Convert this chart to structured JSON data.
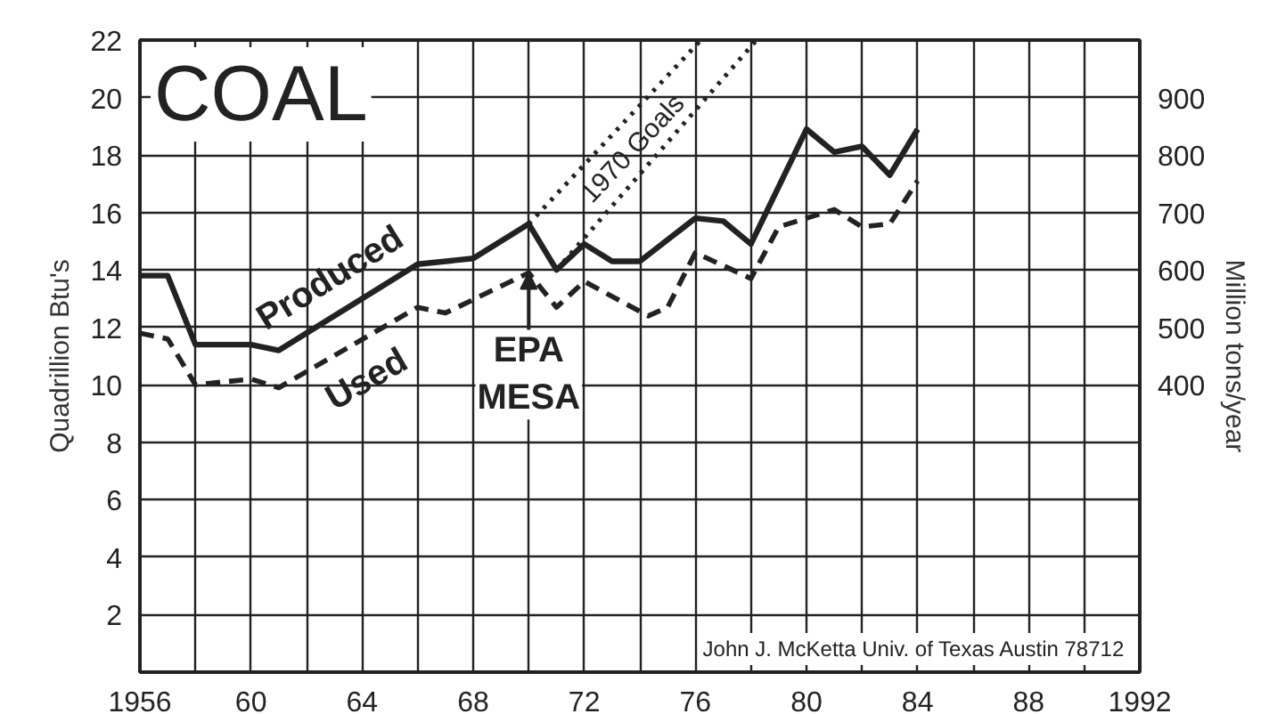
{
  "chart_data": {
    "type": "line",
    "title": "COAL",
    "ylabel": "Quadrillion Btu's",
    "y2label": "Million tons/year",
    "xlim": [
      1956,
      1992
    ],
    "ylim": [
      0,
      22
    ],
    "y2lim": [
      -100,
      1000
    ],
    "xticks": [
      1956,
      {
        "value": 1958,
        "label": null
      },
      {
        "value": 1960,
        "label": "60"
      },
      {
        "value": 1962,
        "label": null
      },
      {
        "value": 1964,
        "label": "64"
      },
      {
        "value": 1966,
        "label": null
      },
      {
        "value": 1968,
        "label": "68"
      },
      {
        "value": 1970,
        "label": null
      },
      {
        "value": 1972,
        "label": "72"
      },
      {
        "value": 1974,
        "label": null
      },
      {
        "value": 1976,
        "label": "76"
      },
      {
        "value": 1978,
        "label": null
      },
      {
        "value": 1980,
        "label": "80"
      },
      {
        "value": 1982,
        "label": null
      },
      {
        "value": 1984,
        "label": "84"
      },
      {
        "value": 1986,
        "label": null
      },
      {
        "value": 1988,
        "label": "88"
      },
      {
        "value": 1990,
        "label": null
      },
      1992
    ],
    "yticks": [
      2,
      4,
      6,
      8,
      10,
      12,
      14,
      16,
      18,
      20,
      22
    ],
    "y2ticks": [
      400,
      500,
      600,
      700,
      800,
      900
    ],
    "grid": true,
    "legend": false,
    "marker": "none",
    "series": [
      {
        "name": "Produced",
        "color": "#222222",
        "line_style": "solid",
        "x": [
          1956,
          1957,
          1958,
          1960,
          1961,
          1966,
          1968,
          1970,
          1971,
          1972,
          1973,
          1974,
          1976,
          1977,
          1978,
          1980,
          1981,
          1982,
          1983,
          1984
        ],
        "values": [
          13.8,
          13.8,
          11.4,
          11.4,
          11.2,
          14.2,
          14.4,
          15.6,
          14.0,
          14.9,
          14.3,
          14.3,
          15.8,
          15.7,
          14.9,
          18.9,
          18.1,
          18.3,
          17.3,
          18.9
        ]
      },
      {
        "name": "Used",
        "color": "#222222",
        "line_style": "dashed",
        "x": [
          1956,
          1957,
          1958,
          1960,
          1961,
          1966,
          1967,
          1970,
          1971,
          1972,
          1974.3,
          1975,
          1976,
          1978,
          1979,
          1981,
          1982,
          1983,
          1984
        ],
        "values": [
          11.8,
          11.6,
          10.0,
          10.2,
          9.9,
          12.7,
          12.5,
          13.9,
          12.7,
          13.6,
          12.4,
          12.7,
          14.6,
          13.7,
          15.5,
          16.1,
          15.5,
          15.6,
          17.1
        ]
      },
      {
        "name": "1970 Goals",
        "color": "#222222",
        "line_style": "dotted",
        "x": [
          1970,
          1976.2
        ],
        "values": [
          15.6,
          22
        ]
      },
      {
        "color": "#222222",
        "line_style": "dotted",
        "x": [
          1971,
          1978.2
        ],
        "values": [
          14.0,
          22
        ]
      }
    ],
    "annotations": [
      {
        "text": "EPA\nMESA",
        "x": 1970,
        "y": 13.9
      },
      "John J. McKetta Univ. of Texas Austin 78712"
    ]
  }
}
